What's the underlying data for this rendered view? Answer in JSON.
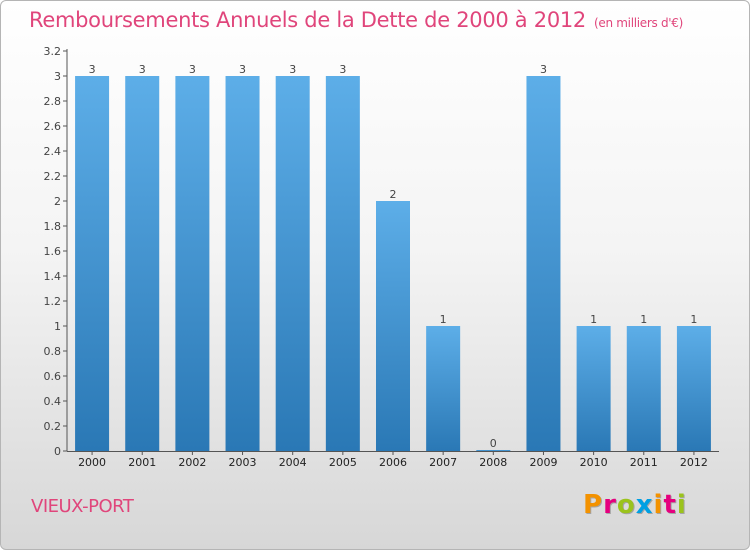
{
  "title": "Remboursements Annuels de la Dette de 2000 à 2012",
  "subtitle": "(en milliers d'€)",
  "place": "VIEUX-PORT",
  "logo": {
    "text": "Proxiti",
    "colors": [
      "#f39200",
      "#e5007e",
      "#9bc31c",
      "#00a0e3",
      "#f39200",
      "#e5007e",
      "#9bc31c"
    ]
  },
  "colors": {
    "accent": "#e0457b",
    "bar_top": "#5daee8",
    "bar_bottom": "#2a78b5"
  },
  "chart_data": {
    "type": "bar",
    "title": "Remboursements Annuels de la Dette de 2000 à 2012",
    "subtitle": "(en milliers d'€)",
    "categories": [
      "2000",
      "2001",
      "2002",
      "2003",
      "2004",
      "2005",
      "2006",
      "2007",
      "2008",
      "2009",
      "2010",
      "2011",
      "2012"
    ],
    "values": [
      3,
      3,
      3,
      3,
      3,
      3,
      2,
      1,
      0,
      3,
      1,
      1,
      1
    ],
    "data_labels": [
      "3",
      "3",
      "3",
      "3",
      "3",
      "3",
      "2",
      "1",
      "0",
      "3",
      "1",
      "1",
      "1"
    ],
    "yticks": [
      "0",
      "0.2",
      "0.4",
      "0.6",
      "0.8",
      "1",
      "1.2",
      "1.4",
      "1.6",
      "1.8",
      "2",
      "2.2",
      "2.4",
      "2.6",
      "2.8",
      "3",
      "3.2"
    ],
    "ylim": [
      0,
      3.2
    ],
    "grid": false,
    "legend": "none"
  }
}
